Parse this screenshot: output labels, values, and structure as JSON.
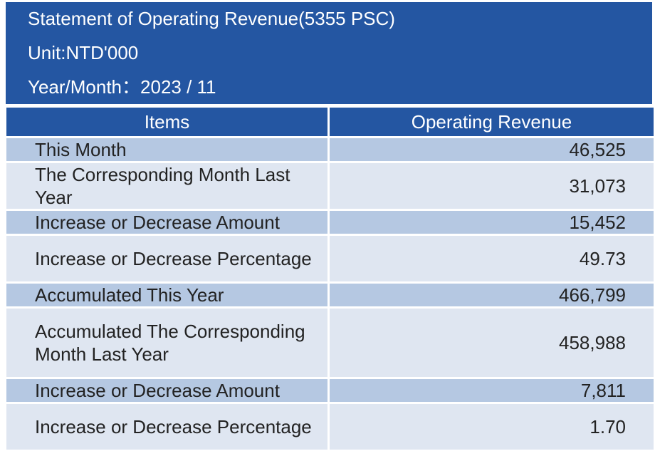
{
  "header": {
    "title": "Statement of Operating Revenue(5355 PSC)",
    "unit": "Unit:NTD'000",
    "year_month": "Year/Month：2023 / 11"
  },
  "table": {
    "columns": [
      "Items",
      "Operating Revenue"
    ],
    "rows": [
      {
        "item": "This Month",
        "value": "46,525"
      },
      {
        "item": "The Corresponding Month Last Year",
        "value": "31,073"
      },
      {
        "item": "Increase or Decrease Amount",
        "value": "15,452"
      },
      {
        "item": "Increase or Decrease Percentage",
        "value": "49.73"
      },
      {
        "item": "Accumulated This Year",
        "value": "466,799"
      },
      {
        "item": "Accumulated The Corresponding Month Last Year",
        "value": "458,988"
      },
      {
        "item": "Increase or Decrease Amount",
        "value": "7,811"
      },
      {
        "item": "Increase or Decrease Percentage",
        "value": "1.70"
      }
    ]
  },
  "colors": {
    "header_bg": "#2456a2",
    "row_dark": "#b5c8e2",
    "row_light": "#dfe6f1"
  }
}
